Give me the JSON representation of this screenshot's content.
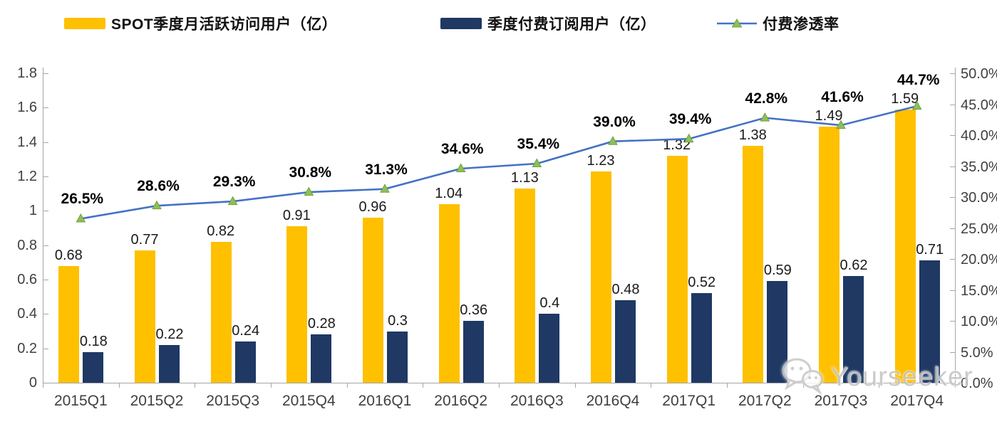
{
  "legend": {
    "items": [
      {
        "label": "SPOT季度月活跃访问用户（亿）",
        "swatch": "bar",
        "color": "#FFC000"
      },
      {
        "label": "季度付费订阅用户（亿）",
        "swatch": "bar",
        "color": "#1F3864"
      },
      {
        "label": "付费渗透率",
        "swatch": "line-triangle",
        "line_color": "#4472C4",
        "marker_color": "#90BE5A"
      }
    ]
  },
  "chart_data": {
    "type": "bar",
    "subtype": "grouped-bars-with-line-overlay",
    "title": "",
    "categories": [
      "2015Q1",
      "2015Q2",
      "2015Q3",
      "2015Q4",
      "2016Q1",
      "2016Q2",
      "2016Q3",
      "2016Q4",
      "2017Q1",
      "2017Q2",
      "2017Q3",
      "2017Q4"
    ],
    "series": [
      {
        "name": "SPOT季度月活跃访问用户（亿）",
        "type": "bar",
        "axis": "left",
        "color": "#FFC000",
        "values": [
          0.68,
          0.77,
          0.82,
          0.91,
          0.96,
          1.04,
          1.13,
          1.23,
          1.32,
          1.38,
          1.49,
          1.59
        ],
        "labels": [
          "0.68",
          "0.77",
          "0.82",
          "0.91",
          "0.96",
          "1.04",
          "1.13",
          "1.23",
          "1.32",
          "1.38",
          "1.49",
          "1.59"
        ]
      },
      {
        "name": "季度付费订阅用户（亿）",
        "type": "bar",
        "axis": "left",
        "color": "#1F3864",
        "values": [
          0.18,
          0.22,
          0.24,
          0.28,
          0.3,
          0.36,
          0.4,
          0.48,
          0.52,
          0.59,
          0.62,
          0.71
        ],
        "labels": [
          "0.18",
          "0.22",
          "0.24",
          "0.28",
          "0.3",
          "0.36",
          "0.4",
          "0.48",
          "0.52",
          "0.59",
          "0.62",
          "0.71"
        ]
      },
      {
        "name": "付费渗透率",
        "type": "line",
        "axis": "right",
        "color": "#4472C4",
        "marker": "triangle",
        "marker_color": "#90BE5A",
        "marker_edge_color": "#6FA33B",
        "values": [
          26.5,
          28.6,
          29.3,
          30.8,
          31.3,
          34.6,
          35.4,
          39.0,
          39.4,
          42.8,
          41.6,
          44.7
        ],
        "labels": [
          "26.5%",
          "28.6%",
          "29.3%",
          "30.8%",
          "31.3%",
          "34.6%",
          "35.4%",
          "39.0%",
          "39.4%",
          "42.8%",
          "41.6%",
          "44.7%"
        ]
      }
    ],
    "left_axis": {
      "min": 0,
      "max": 1.8,
      "step": 0.2,
      "tick_labels": [
        "0",
        "0.2",
        "0.4",
        "0.6",
        "0.8",
        "1",
        "1.2",
        "1.4",
        "1.6",
        "1.8"
      ]
    },
    "right_axis": {
      "min": 0,
      "max": 50,
      "step": 5,
      "tick_labels": [
        "0.0%",
        "5.0%",
        "10.0%",
        "15.0%",
        "20.0%",
        "25.0%",
        "30.0%",
        "35.0%",
        "40.0%",
        "45.0%",
        "50.0%"
      ]
    },
    "grid": false,
    "legend_position": "top"
  },
  "watermark": {
    "text": "Yourseeker",
    "icon": "wechat-icon"
  }
}
